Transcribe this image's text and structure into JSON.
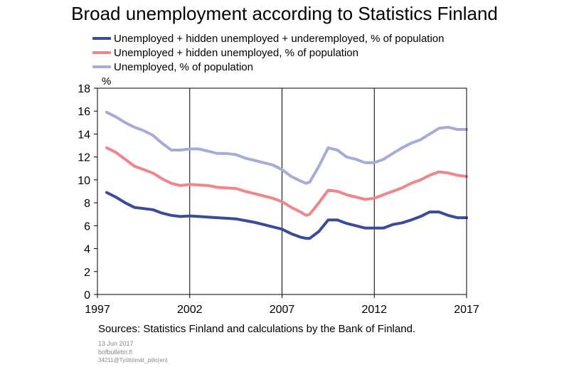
{
  "chart_data": {
    "type": "line",
    "title": "Broad unemployment according to Statistics Finland",
    "ylabel": "%",
    "xlabel": "",
    "ylim": [
      0,
      18
    ],
    "yticks": [
      0,
      2,
      4,
      6,
      8,
      10,
      12,
      14,
      16,
      18
    ],
    "xlim": [
      1997,
      2017
    ],
    "xticks": [
      "1997",
      "2002",
      "2007",
      "2012",
      "2017"
    ],
    "grid": true,
    "legend_position": "top-left",
    "series": [
      {
        "name": "Unemployed + hidden unemployed + underemployed, % of population",
        "color": "#3c4a9c",
        "x": [
          1997.5,
          1998,
          1998.5,
          1999,
          1999.5,
          2000,
          2000.5,
          2001,
          2001.5,
          2002,
          2002.5,
          2003,
          2003.5,
          2004,
          2004.5,
          2005,
          2005.5,
          2006,
          2006.5,
          2007,
          2007.5,
          2008,
          2008.3,
          2008.5,
          2009,
          2009.5,
          2010,
          2010.5,
          2011,
          2011.5,
          2012,
          2012.5,
          2013,
          2013.5,
          2014,
          2014.5,
          2015,
          2015.5,
          2016,
          2016.5,
          2017
        ],
        "values": [
          8.9,
          8.5,
          8.0,
          7.6,
          7.5,
          7.4,
          7.1,
          6.9,
          6.8,
          6.85,
          6.8,
          6.75,
          6.7,
          6.65,
          6.6,
          6.45,
          6.3,
          6.1,
          5.9,
          5.7,
          5.3,
          5.0,
          4.9,
          4.9,
          5.5,
          6.5,
          6.5,
          6.2,
          6.0,
          5.8,
          5.8,
          5.8,
          6.1,
          6.25,
          6.5,
          6.8,
          7.2,
          7.2,
          6.9,
          6.7,
          6.7
        ]
      },
      {
        "name": "Unemployed + hidden unemployed, % of population",
        "color": "#f0868a",
        "x": [
          1997.5,
          1998,
          1998.5,
          1999,
          1999.5,
          2000,
          2000.5,
          2001,
          2001.5,
          2002,
          2002.5,
          2003,
          2003.5,
          2004,
          2004.5,
          2005,
          2005.5,
          2006,
          2006.5,
          2007,
          2007.5,
          2008,
          2008.3,
          2008.5,
          2009,
          2009.5,
          2010,
          2010.5,
          2011,
          2011.5,
          2012,
          2012.5,
          2013,
          2013.5,
          2014,
          2014.5,
          2015,
          2015.5,
          2016,
          2016.5,
          2017
        ],
        "values": [
          12.8,
          12.4,
          11.8,
          11.2,
          10.9,
          10.6,
          10.1,
          9.7,
          9.5,
          9.6,
          9.55,
          9.5,
          9.35,
          9.3,
          9.25,
          9.0,
          8.8,
          8.6,
          8.4,
          8.1,
          7.6,
          7.2,
          6.9,
          7.0,
          8.0,
          9.1,
          9.0,
          8.7,
          8.5,
          8.3,
          8.4,
          8.7,
          9.0,
          9.3,
          9.7,
          10.0,
          10.4,
          10.7,
          10.6,
          10.4,
          10.3
        ]
      },
      {
        "name": "Unemployed, % of population",
        "color": "#a6abd8",
        "x": [
          1997.5,
          1998,
          1998.5,
          1999,
          1999.5,
          2000,
          2000.5,
          2001,
          2001.5,
          2002,
          2002.5,
          2003,
          2003.5,
          2004,
          2004.5,
          2005,
          2005.5,
          2006,
          2006.5,
          2007,
          2007.5,
          2008,
          2008.3,
          2008.5,
          2009,
          2009.5,
          2010,
          2010.5,
          2011,
          2011.5,
          2012,
          2012.5,
          2013,
          2013.5,
          2014,
          2014.5,
          2015,
          2015.5,
          2016,
          2016.5,
          2017
        ],
        "values": [
          15.9,
          15.5,
          15.0,
          14.6,
          14.3,
          13.9,
          13.2,
          12.6,
          12.6,
          12.7,
          12.7,
          12.5,
          12.3,
          12.3,
          12.2,
          11.9,
          11.7,
          11.5,
          11.3,
          10.9,
          10.3,
          9.9,
          9.7,
          9.8,
          11.2,
          12.8,
          12.6,
          12.0,
          11.8,
          11.5,
          11.5,
          11.8,
          12.3,
          12.8,
          13.2,
          13.5,
          14.0,
          14.5,
          14.6,
          14.4,
          14.4
        ]
      }
    ],
    "source": "Sources: Statistics Finland and calculations by the Bank of Finland.",
    "date": "13 Jun 2017",
    "site": "bofbulletin.fi",
    "code": "34211@Työttömät_piilo(en)"
  }
}
